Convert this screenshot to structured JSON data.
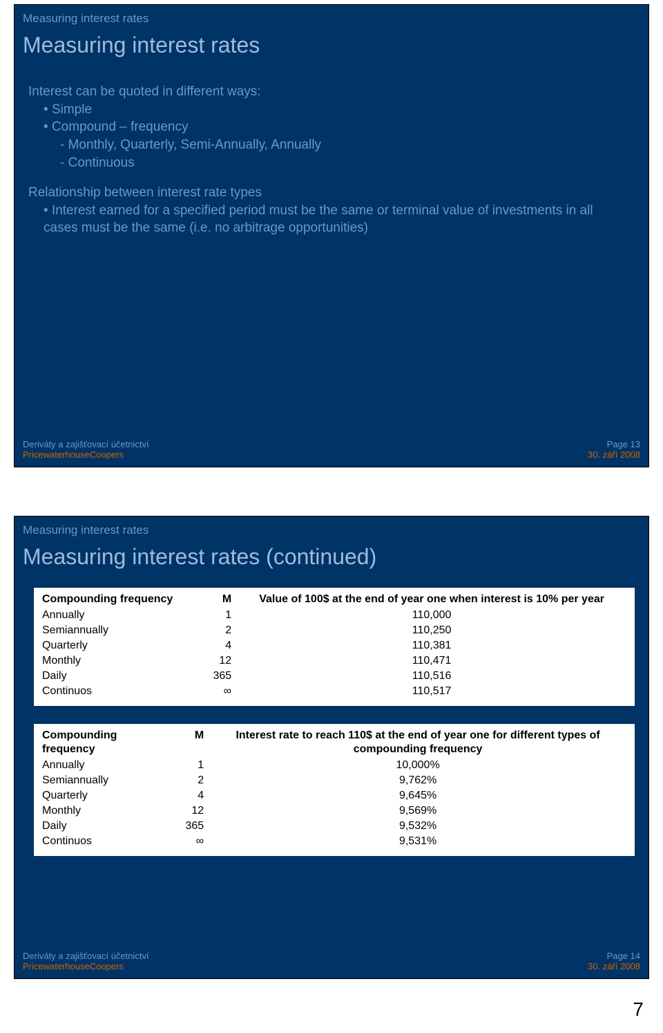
{
  "page_number": "7",
  "colors": {
    "slide_bg": "#003366",
    "accent_text": "#6699cc",
    "title_text": "#9cbce0",
    "footer_orange": "#cc6600",
    "table_bg": "#ffffff",
    "table_text": "#000000",
    "body_bg": "#ffffff"
  },
  "slide1": {
    "breadcrumb": "Measuring interest rates",
    "title": "Measuring interest rates",
    "intro": "Interest can be quoted in different ways:",
    "b1": "Simple",
    "b2": "Compound – frequency",
    "b2a": "Monthly, Quarterly, Semi-Annually, Annually",
    "b2b": "Continuous",
    "para2": "Relationship between interest rate types",
    "p2b1": "Interest earned for a specified period must be the same or terminal value of investments in all cases must be the same (i.e. no arbitrage opportunities)",
    "footer_l1": "Deriváty a zajišťovací účetnictví",
    "footer_l2": "PricewaterhouseCoopers",
    "footer_r1": "Page 13",
    "footer_r2": "30. září 2008"
  },
  "slide2": {
    "breadcrumb": "Measuring interest rates",
    "title": "Measuring interest rates (continued)",
    "table1": {
      "h_freq": "Compounding frequency",
      "h_m": "M",
      "h_val": "Value of 100$ at the end of year one when interest is 10% per year",
      "rows": [
        {
          "f": "Annually",
          "m": "1",
          "v": "110,000"
        },
        {
          "f": "Semiannually",
          "m": "2",
          "v": "110,250"
        },
        {
          "f": "Quarterly",
          "m": "4",
          "v": "110,381"
        },
        {
          "f": "Monthly",
          "m": "12",
          "v": "110,471"
        },
        {
          "f": "Daily",
          "m": "365",
          "v": "110,516"
        },
        {
          "f": "Continuos",
          "m": "∞",
          "v": "110,517"
        }
      ]
    },
    "table2": {
      "h_freq": "Compounding frequency",
      "h_m": "M",
      "h_val": "Interest rate to reach 110$ at the end of year one for different types of compounding frequency",
      "rows": [
        {
          "f": "Annually",
          "m": "1",
          "v": "10,000%"
        },
        {
          "f": "Semiannually",
          "m": "2",
          "v": "9,762%"
        },
        {
          "f": "Quarterly",
          "m": "4",
          "v": "9,645%"
        },
        {
          "f": "Monthly",
          "m": "12",
          "v": "9,569%"
        },
        {
          "f": "Daily",
          "m": "365",
          "v": "9,532%"
        },
        {
          "f": "Continuos",
          "m": "∞",
          "v": "9,531%"
        }
      ]
    },
    "footer_l1": "Deriváty a zajišťovací účetnictví",
    "footer_l2": "PricewaterhouseCoopers",
    "footer_r1": "Page 14",
    "footer_r2": "30. září 2008"
  }
}
